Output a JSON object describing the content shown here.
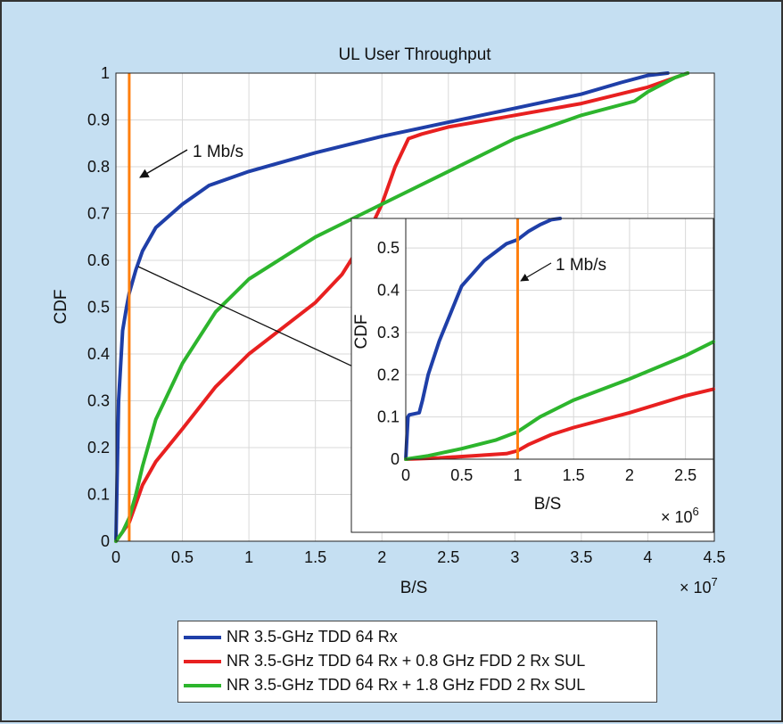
{
  "chart_data": [
    {
      "type": "line",
      "title": "UL User Throughput",
      "xlabel": "B/S",
      "ylabel": "CDF",
      "x_multiplier": "× 10^7",
      "xlim": [
        0,
        4.5
      ],
      "ylim": [
        0,
        1
      ],
      "xticks": [
        "0",
        "0.5",
        "1",
        "1.5",
        "2",
        "2.5",
        "3",
        "3.5",
        "4",
        "4.5"
      ],
      "yticks": [
        "0",
        "0.1",
        "0.2",
        "0.3",
        "0.4",
        "0.5",
        "0.6",
        "0.7",
        "0.8",
        "0.9",
        "1"
      ],
      "grid": true,
      "legend_position": "bottom",
      "annotation": "1 Mb/s",
      "vline_x": 0.1,
      "vline_color": "#ff7f0e",
      "series": [
        {
          "name": "NR 3.5-GHz TDD 64 Rx",
          "color": "#1f3fa8",
          "x": [
            0,
            0.02,
            0.05,
            0.08,
            0.1,
            0.15,
            0.2,
            0.3,
            0.5,
            0.7,
            1.0,
            1.5,
            2.0,
            2.5,
            3.0,
            3.5,
            3.8,
            4.0,
            4.15
          ],
          "y": [
            0,
            0.3,
            0.45,
            0.5,
            0.53,
            0.58,
            0.62,
            0.67,
            0.72,
            0.76,
            0.79,
            0.83,
            0.865,
            0.895,
            0.925,
            0.955,
            0.98,
            0.995,
            1.0
          ]
        },
        {
          "name": "NR 3.5-GHz TDD 64 Rx + 0.8 GHz FDD 2 Rx SUL",
          "color": "#e82020",
          "x": [
            0,
            0.05,
            0.1,
            0.15,
            0.2,
            0.3,
            0.5,
            0.75,
            1.0,
            1.5,
            1.7,
            1.9,
            2.0,
            2.1,
            2.2,
            2.3,
            2.5,
            3.0,
            3.5,
            4.0,
            4.3
          ],
          "y": [
            0,
            0.02,
            0.04,
            0.08,
            0.12,
            0.17,
            0.24,
            0.33,
            0.4,
            0.51,
            0.57,
            0.66,
            0.72,
            0.8,
            0.86,
            0.87,
            0.885,
            0.91,
            0.935,
            0.97,
            1.0
          ]
        },
        {
          "name": "NR 3.5-GHz TDD 64 Rx + 1.8 GHz FDD 2 Rx SUL",
          "color": "#2db52d",
          "x": [
            0,
            0.05,
            0.1,
            0.15,
            0.2,
            0.3,
            0.5,
            0.75,
            1.0,
            1.5,
            2.0,
            2.5,
            3.0,
            3.5,
            3.9,
            4.0,
            4.2,
            4.3
          ],
          "y": [
            0,
            0.02,
            0.05,
            0.1,
            0.16,
            0.26,
            0.38,
            0.49,
            0.56,
            0.65,
            0.72,
            0.79,
            0.86,
            0.91,
            0.94,
            0.96,
            0.99,
            1.0
          ]
        }
      ]
    },
    {
      "type": "line",
      "title": "",
      "xlabel": "B/S",
      "ylabel": "CDF",
      "x_multiplier": "× 10^6",
      "xlim": [
        0,
        2.75
      ],
      "ylim": [
        0,
        0.57
      ],
      "xticks": [
        "0",
        "0.5",
        "1",
        "1.5",
        "2",
        "2.5"
      ],
      "yticks": [
        "0",
        "0.1",
        "0.2",
        "0.3",
        "0.4",
        "0.5"
      ],
      "grid": true,
      "annotation": "1 Mb/s",
      "vline_x": 1.0,
      "vline_color": "#ff7f0e",
      "series": [
        {
          "name": "NR 3.5-GHz TDD 64 Rx",
          "color": "#1f3fa8",
          "x": [
            0,
            0.02,
            0.03,
            0.12,
            0.15,
            0.2,
            0.3,
            0.5,
            0.7,
            0.9,
            1.0,
            1.1,
            1.2,
            1.3,
            1.38
          ],
          "y": [
            0,
            0.1,
            0.105,
            0.11,
            0.14,
            0.2,
            0.28,
            0.41,
            0.47,
            0.51,
            0.52,
            0.54,
            0.555,
            0.567,
            0.57
          ]
        },
        {
          "name": "NR 3.5-GHz TDD 64 Rx + 0.8 GHz FDD 2 Rx SUL",
          "color": "#e82020",
          "x": [
            0,
            0.3,
            0.6,
            0.9,
            1.0,
            1.1,
            1.3,
            1.5,
            2.0,
            2.5,
            2.75
          ],
          "y": [
            0,
            0.003,
            0.008,
            0.013,
            0.02,
            0.035,
            0.058,
            0.075,
            0.11,
            0.15,
            0.166
          ]
        },
        {
          "name": "NR 3.5-GHz TDD 64 Rx + 1.8 GHz FDD 2 Rx SUL",
          "color": "#2db52d",
          "x": [
            0,
            0.2,
            0.5,
            0.8,
            1.0,
            1.2,
            1.5,
            2.0,
            2.5,
            2.75
          ],
          "y": [
            0,
            0.008,
            0.025,
            0.045,
            0.065,
            0.1,
            0.14,
            0.19,
            0.245,
            0.278
          ]
        }
      ]
    }
  ],
  "main_chart": {
    "title": "UL User Throughput",
    "xlabel": "B/S",
    "ylabel": "CDF",
    "multiplier_base": "× 10",
    "multiplier_exp": "7",
    "annotation": "1 Mb/s"
  },
  "inset_chart": {
    "xlabel": "B/S",
    "ylabel": "CDF",
    "multiplier_base": "× 10",
    "multiplier_exp": "6",
    "annotation": "1 Mb/s"
  },
  "legend": {
    "items": [
      {
        "label": "NR 3.5-GHz TDD 64 Rx",
        "color": "#1f3fa8"
      },
      {
        "label": "NR 3.5-GHz TDD 64 Rx + 0.8 GHz FDD 2 Rx SUL",
        "color": "#e82020"
      },
      {
        "label": "NR 3.5-GHz TDD 64 Rx + 1.8 GHz FDD 2 Rx SUL",
        "color": "#2db52d"
      }
    ]
  }
}
